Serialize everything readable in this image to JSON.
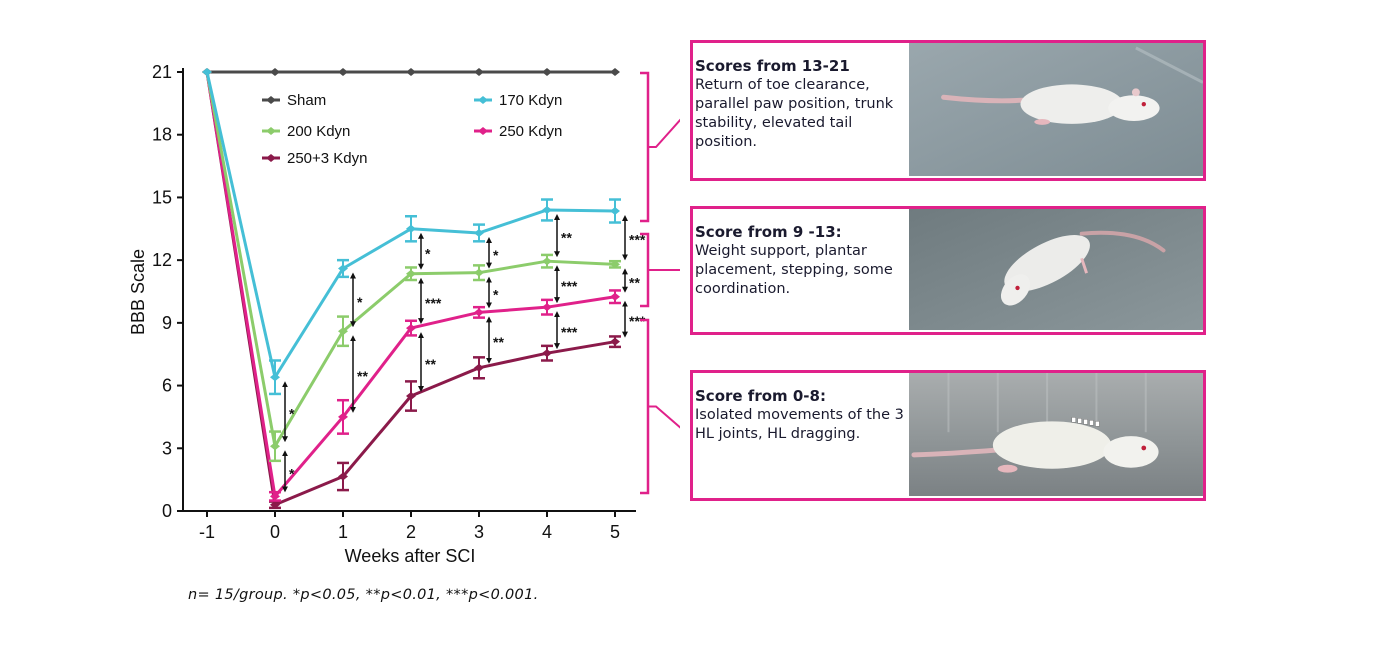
{
  "chart_data": {
    "type": "line",
    "title": "",
    "xlabel": "Weeks after SCI",
    "ylabel": "BBB Scale",
    "x": [
      -1,
      0,
      1,
      2,
      3,
      4,
      5
    ],
    "xticks": [
      "-1",
      "0",
      "1",
      "2",
      "3",
      "4",
      "5"
    ],
    "yticks": [
      "0",
      "3",
      "6",
      "9",
      "12",
      "15",
      "18",
      "21"
    ],
    "ylim": [
      0,
      21
    ],
    "xlim": [
      -1.3,
      5.3
    ],
    "grid": false,
    "legend_position": "upper-left-inside",
    "series": [
      {
        "name": "Sham",
        "color": "#4a4a4a",
        "values": [
          21,
          21,
          21,
          21,
          21,
          21,
          21
        ],
        "error": [
          0,
          0,
          0,
          0,
          0,
          0,
          0
        ]
      },
      {
        "name": "170 Kdyn",
        "color": "#45bfd6",
        "values": [
          21,
          6.4,
          11.6,
          13.5,
          13.3,
          14.4,
          14.35
        ],
        "error": [
          0,
          0.8,
          0.4,
          0.6,
          0.4,
          0.5,
          0.55
        ]
      },
      {
        "name": "200 Kdyn",
        "color": "#8ccc6b",
        "values": [
          21,
          3.1,
          8.6,
          11.35,
          11.4,
          11.95,
          11.8
        ],
        "error": [
          0,
          0.7,
          0.7,
          0.3,
          0.35,
          0.3,
          0.15
        ]
      },
      {
        "name": "250 Kdyn",
        "color": "#e0218a",
        "values": [
          21,
          0.7,
          4.5,
          8.75,
          9.5,
          9.75,
          10.25
        ],
        "error": [
          0,
          0.2,
          0.8,
          0.35,
          0.25,
          0.35,
          0.3
        ]
      },
      {
        "name": "250+3 Kdyn",
        "color": "#8b1a4a",
        "values": [
          21,
          0.3,
          1.65,
          5.5,
          6.85,
          7.55,
          8.1
        ],
        "error": [
          0,
          0.15,
          0.65,
          0.7,
          0.5,
          0.35,
          0.25
        ]
      }
    ],
    "legend": [
      {
        "label": "Sham",
        "series": 0
      },
      {
        "label": "170 Kdyn",
        "series": 1
      },
      {
        "label": "200 Kdyn",
        "series": 2
      },
      {
        "label": "250 Kdyn",
        "series": 3
      },
      {
        "label": "250+3 Kdyn",
        "series": 4
      }
    ],
    "significance": [
      {
        "x": 0,
        "from": 6.4,
        "to": 3.1,
        "label": "*"
      },
      {
        "x": 0,
        "from": 3.1,
        "to": 0.7,
        "label": "*"
      },
      {
        "x": 1,
        "from": 11.6,
        "to": 8.6,
        "label": "*"
      },
      {
        "x": 1,
        "from": 8.6,
        "to": 4.5,
        "label": "**"
      },
      {
        "x": 2,
        "from": 13.5,
        "to": 11.35,
        "label": "*"
      },
      {
        "x": 2,
        "from": 11.35,
        "to": 8.75,
        "label": "***"
      },
      {
        "x": 2,
        "from": 8.75,
        "to": 5.5,
        "label": "**"
      },
      {
        "x": 3,
        "from": 13.3,
        "to": 11.4,
        "label": "*"
      },
      {
        "x": 3,
        "from": 11.4,
        "to": 9.5,
        "label": "*"
      },
      {
        "x": 3,
        "from": 9.5,
        "to": 6.85,
        "label": "**"
      },
      {
        "x": 4,
        "from": 14.4,
        "to": 11.95,
        "label": "**"
      },
      {
        "x": 4,
        "from": 11.95,
        "to": 9.75,
        "label": "***"
      },
      {
        "x": 4,
        "from": 9.75,
        "to": 7.55,
        "label": "***"
      },
      {
        "x": 5,
        "from": 14.35,
        "to": 11.8,
        "label": "***"
      },
      {
        "x": 5,
        "from": 11.8,
        "to": 10.25,
        "label": "**"
      },
      {
        "x": 5,
        "from": 10.25,
        "to": 8.1,
        "label": "***"
      }
    ],
    "brackets": [
      {
        "from": 13,
        "to": 21,
        "card": 0
      },
      {
        "from": 9,
        "to": 13,
        "card": 1
      },
      {
        "from": 0.8,
        "to": 9,
        "card": 2
      }
    ]
  },
  "cards": [
    {
      "title": "Scores from 13-21",
      "body": "Return of toe clearance, parallel paw position, trunk stability, elevated tail position.",
      "photo": "rat-walking-photo"
    },
    {
      "title": "Score from 9 -13:",
      "body": "Weight support, plantar placement, stepping, some coordination.",
      "photo": "rat-stepping-photo"
    },
    {
      "title": "Score from 0-8:",
      "body": "Isolated movements of the 3 HL joints, HL dragging.",
      "photo": "rat-dragging-photo"
    }
  ],
  "caption": "n= 15/group. *p<0.05, **p<0.01, ***p<0.001.",
  "colors": {
    "accent": "#e0218a",
    "axis": "#111111"
  }
}
